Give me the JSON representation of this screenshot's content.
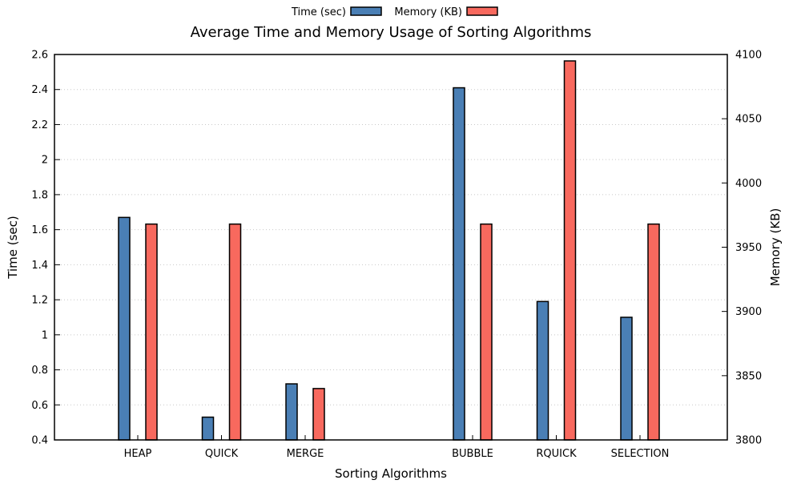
{
  "chart_data": {
    "type": "bar",
    "title": "Average Time and Memory Usage of Sorting Algorithms",
    "xlabel": "Sorting Algorithms",
    "ylabel": "Time (sec)",
    "y2label": "Memory (KB)",
    "categories": [
      "HEAP",
      "QUICK",
      "MERGE",
      "",
      "BUBBLE",
      "RQUICK",
      "SELECTION"
    ],
    "ylim": [
      0.4,
      2.6
    ],
    "y2lim": [
      3800,
      4100
    ],
    "yticks": [
      "0.4",
      "0.6",
      "0.8",
      "1",
      "1.2",
      "1.4",
      "1.6",
      "1.8",
      "2",
      "2.2",
      "2.4",
      "2.6"
    ],
    "y2ticks": [
      "3800",
      "3850",
      "3900",
      "3950",
      "4000",
      "4050",
      "4100"
    ],
    "grid": true,
    "legend_position": "top-center",
    "series": [
      {
        "name": "Time (sec)",
        "axis": "left",
        "color": "#4a7fb5",
        "values": [
          1.67,
          0.53,
          0.72,
          null,
          2.41,
          1.19,
          1.1
        ]
      },
      {
        "name": "Memory (KB)",
        "axis": "right",
        "color": "#f8695e",
        "values": [
          3968,
          3968,
          3840,
          null,
          3968,
          4095,
          3968
        ]
      }
    ]
  }
}
